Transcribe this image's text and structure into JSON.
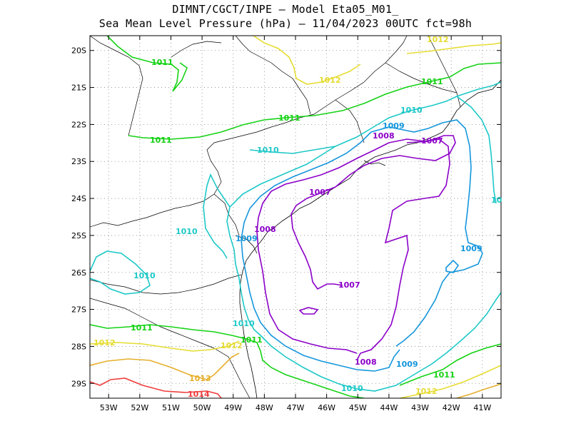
{
  "header": {
    "line1": "DIMNT/CGCT/INPE –  Model Eta05_M01_",
    "line2": "Sea Mean Level Pressure (hPa) – 11/04/2023 00UTC fct=98h"
  },
  "axes": {
    "lon_labels": [
      "53W",
      "52W",
      "51W",
      "50W",
      "49W",
      "48W",
      "47W",
      "46W",
      "45W",
      "44W",
      "43W",
      "42W",
      "41W"
    ],
    "lat_labels": [
      "20S",
      "21S",
      "22S",
      "23S",
      "24S",
      "25S",
      "26S",
      "27S",
      "28S",
      "29S"
    ],
    "lon_range": [
      -53.6,
      -40.4
    ],
    "lat_range": [
      -29.4,
      -19.6
    ]
  },
  "chart_data": {
    "type": "contour",
    "variable": "Sea Mean Level Pressure (hPa)",
    "levels": [
      {
        "value": 1007,
        "color": "#8B00C8",
        "labels": [
          "1007",
          "1007",
          "1007"
        ]
      },
      {
        "value": 1008,
        "color": "#8B00C8",
        "labels": [
          "1008",
          "1008",
          "1008"
        ]
      },
      {
        "value": 1009,
        "color": "#1496DC",
        "labels": [
          "1009",
          "1009",
          "1009",
          "1009"
        ]
      },
      {
        "value": 1010,
        "color": "#1EC8C8",
        "labels": [
          "1010",
          "1010",
          "1010",
          "1010",
          "1010",
          "1010",
          "10"
        ]
      },
      {
        "value": 1011,
        "color": "#14D214",
        "labels": [
          "1011",
          "1011",
          "1011",
          "1011",
          "1011",
          "1011",
          "1011"
        ]
      },
      {
        "value": 1012,
        "color": "#E6DC32",
        "labels": [
          "1012",
          "1012",
          "1012",
          "1012",
          "1012"
        ]
      },
      {
        "value": 1013,
        "color": "#E6AF2D",
        "labels": [
          "1013"
        ]
      },
      {
        "value": 1014,
        "color": "#F03C3C",
        "labels": [
          "1014"
        ]
      }
    ],
    "grid": true,
    "grid_style": "dotted"
  }
}
